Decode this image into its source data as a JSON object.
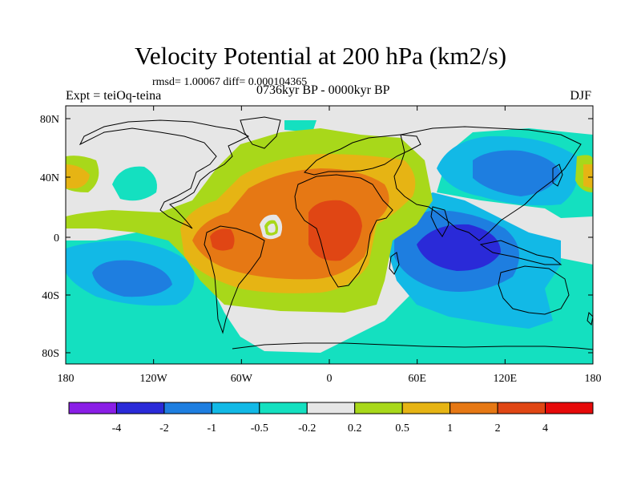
{
  "figure": {
    "title": "Velocity Potential at 200 hPa (km2/s)",
    "stats": "rmsd= 1.00067 diff= 0.000104365",
    "left_label": "Expt = teiOq-teina",
    "center_label": "0736kyr BP - 0000kyr BP",
    "right_label": "DJF"
  },
  "axes": {
    "lat_labels": [
      "80N",
      "40N",
      "0",
      "40S",
      "80S"
    ],
    "lon_labels": [
      "180",
      "120W",
      "60W",
      "0",
      "60E",
      "120E",
      "180"
    ]
  },
  "colorbar": {
    "labels": [
      "-4",
      "-2",
      "-1",
      "-0.5",
      "-0.2",
      "0.2",
      "0.5",
      "1",
      "2",
      "4"
    ],
    "colors": [
      "#8a1ee6",
      "#2a2ad8",
      "#1e7ee0",
      "#12b9e6",
      "#14e0c0",
      "#e6e6e6",
      "#a8d81a",
      "#e6b414",
      "#e67814",
      "#e04614",
      "#e60a0a"
    ]
  },
  "colors": {
    "lvl_neg1": "#1e7ee0",
    "lvl_neg05": "#12b9e6",
    "lvl_neg02": "#14e0c0",
    "lvl_zero": "#e6e6e6",
    "lvl_pos02": "#a8d81a",
    "lvl_pos05": "#e6b414",
    "lvl_pos1": "#e67814",
    "lvl_pos2": "#e04614",
    "lvl_neg2": "#2a2ad8"
  }
}
